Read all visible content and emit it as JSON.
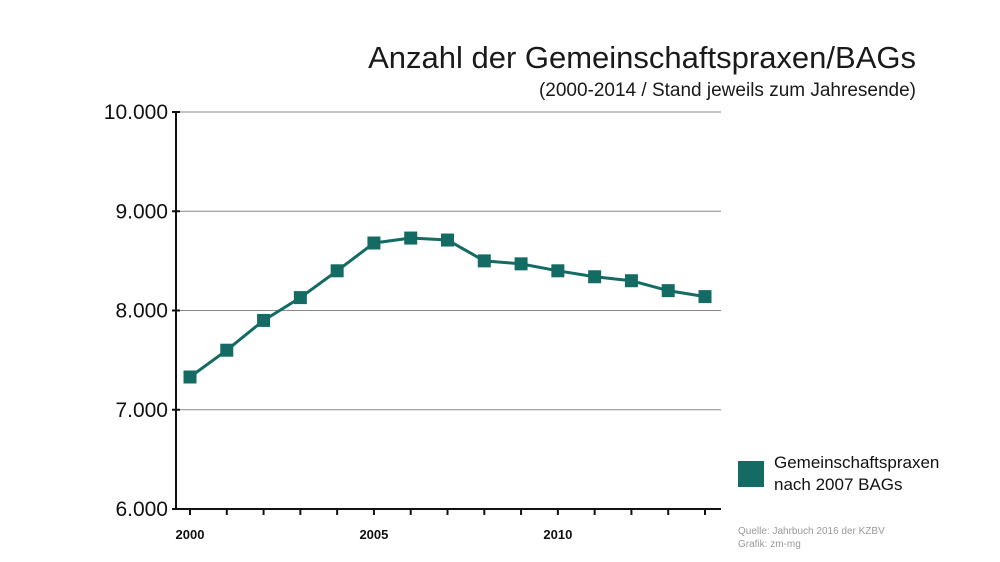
{
  "title": "Anzahl der Gemeinschaftspraxen/BAGs",
  "subtitle": "(2000-2014 / Stand jeweils zum Jahresende)",
  "source": [
    "Quelle: Jahrbuch 2016 der KZBV",
    "Grafik: zm-mg"
  ],
  "colors": {
    "series": "#136b63",
    "axis": "#111111",
    "grid": "#888888"
  },
  "chart_data": {
    "type": "line",
    "title": "Anzahl der Gemeinschaftspraxen/BAGs",
    "subtitle": "(2000-2014 / Stand jeweils zum Jahresende)",
    "x": [
      2000,
      2001,
      2002,
      2003,
      2004,
      2005,
      2006,
      2007,
      2008,
      2009,
      2010,
      2011,
      2012,
      2013,
      2014
    ],
    "series": [
      {
        "name": "Gemeinschaftspraxen nach 2007 BAGs",
        "values": [
          7330,
          7600,
          7900,
          8130,
          8400,
          8680,
          8730,
          8710,
          8500,
          8470,
          8400,
          8340,
          8300,
          8200,
          8140
        ]
      }
    ],
    "ylim": [
      6000,
      10000
    ],
    "yticks": [
      6000,
      7000,
      8000,
      9000,
      10000
    ],
    "ytick_labels": [
      "6.000",
      "7.000",
      "8.000",
      "9.000",
      "10.000"
    ],
    "xtick_labels": [
      {
        "value": 2000,
        "label": "2000"
      },
      {
        "value": 2005,
        "label": "2005"
      },
      {
        "value": 2010,
        "label": "2010"
      }
    ],
    "grid": "horizontal",
    "legend": "bottom-right",
    "xlabel": "",
    "ylabel": ""
  }
}
